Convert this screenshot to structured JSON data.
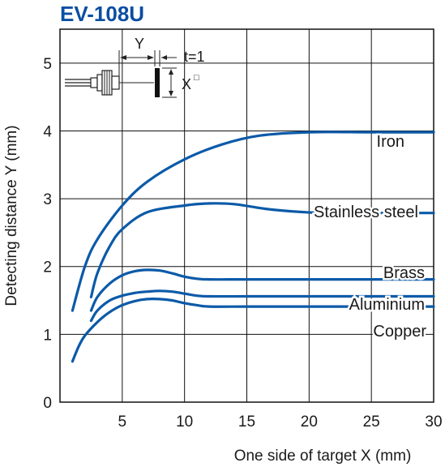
{
  "chart_data": {
    "type": "line",
    "title": "EV-108U",
    "xlabel": "One side of target X (mm)",
    "ylabel": "Detecting distance Y (mm)",
    "xlim": [
      0,
      30
    ],
    "ylim": [
      0,
      5.5
    ],
    "xticks": [
      0,
      5,
      10,
      15,
      20,
      25,
      30
    ],
    "yticks": [
      0,
      1,
      2,
      3,
      4,
      5
    ],
    "grid": true,
    "series_color": "#0b5aa8",
    "series": [
      {
        "name": "Iron",
        "x": [
          1,
          2,
          3,
          5,
          7,
          10,
          13,
          16,
          20,
          25,
          30
        ],
        "y": [
          1.35,
          2.0,
          2.4,
          2.9,
          3.25,
          3.58,
          3.8,
          3.93,
          3.98,
          3.98,
          3.98
        ]
      },
      {
        "name": "Stainless steel",
        "x": [
          2.5,
          3,
          4,
          5,
          7,
          10,
          12,
          14,
          17,
          21,
          25,
          30
        ],
        "y": [
          1.55,
          1.9,
          2.3,
          2.55,
          2.8,
          2.9,
          2.93,
          2.92,
          2.84,
          2.79,
          2.79,
          2.79
        ]
      },
      {
        "name": "Brass",
        "x": [
          2.5,
          3,
          4,
          5,
          6,
          7,
          8,
          9,
          10,
          11,
          12,
          15,
          20,
          25,
          30
        ],
        "y": [
          1.35,
          1.55,
          1.75,
          1.87,
          1.93,
          1.95,
          1.94,
          1.9,
          1.85,
          1.82,
          1.81,
          1.81,
          1.81,
          1.81,
          1.81
        ]
      },
      {
        "name": "Aluminium",
        "x": [
          2.5,
          3,
          4,
          5,
          6,
          7,
          8,
          9,
          10,
          11,
          12,
          15,
          20,
          25,
          30
        ],
        "y": [
          1.2,
          1.35,
          1.5,
          1.57,
          1.61,
          1.63,
          1.64,
          1.63,
          1.6,
          1.57,
          1.56,
          1.56,
          1.56,
          1.56,
          1.56
        ]
      },
      {
        "name": "Copper",
        "x": [
          1,
          1.5,
          2,
          3,
          4,
          5,
          6,
          7,
          8,
          9,
          10,
          11,
          12,
          15,
          20,
          25,
          30
        ],
        "y": [
          0.6,
          0.82,
          0.98,
          1.18,
          1.33,
          1.43,
          1.49,
          1.52,
          1.52,
          1.5,
          1.46,
          1.43,
          1.41,
          1.41,
          1.41,
          1.41,
          1.41
        ]
      }
    ]
  },
  "inset": {
    "y_label": "Y",
    "t_label": "t=1",
    "x_label": "X",
    "x_sup": "□"
  }
}
